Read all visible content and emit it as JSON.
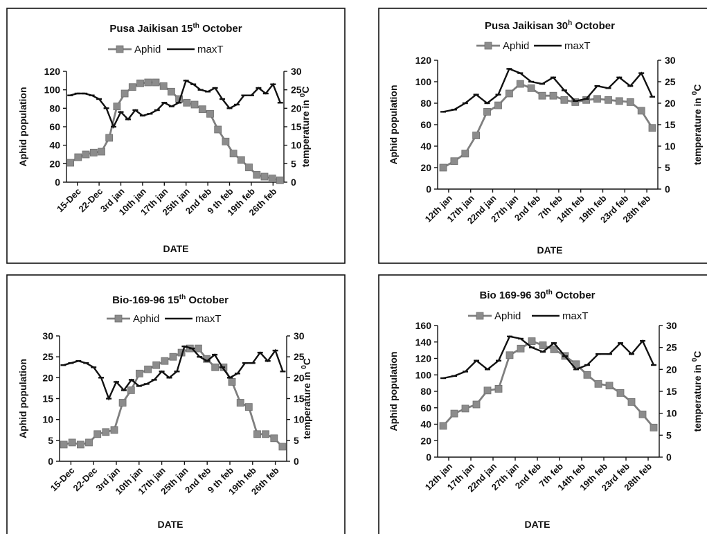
{
  "chart_data": [
    {
      "type": "line",
      "title_main": "Pusa Jaikisan 15",
      "title_sup": "th",
      "title_rest": " October",
      "xlabel": "DATE",
      "ylabel": "Aphid population",
      "y2label_main": "temperature in ",
      "y2label_sup": "0",
      "y2label_rest": "C",
      "ylim": [
        0,
        120
      ],
      "yticks": [
        "0",
        "20",
        "40",
        "60",
        "80",
        "100",
        "120"
      ],
      "y2lim": [
        0,
        30
      ],
      "y2ticks": [
        "0",
        "5",
        "10",
        "15",
        "20",
        "25",
        "30"
      ],
      "xtick_labels": [
        "15-Dec",
        "22-Dec",
        "3rd jan",
        "10th jan",
        "17th jan",
        "25th jan",
        "2nd feb",
        "9 th feb",
        "19th feb",
        "26th feb"
      ],
      "legend": [
        "Aphid",
        "maxT"
      ],
      "series": [
        {
          "name": "Aphid",
          "axis": "left",
          "values": [
            21,
            27,
            30,
            32,
            33,
            48,
            82,
            96,
            103,
            107,
            108,
            108,
            104,
            98,
            90,
            86,
            84,
            79,
            74,
            57,
            44,
            31,
            24,
            16,
            8,
            6,
            4,
            2
          ]
        },
        {
          "name": "maxT",
          "axis": "right",
          "values": [
            23.5,
            24,
            24,
            23.5,
            22.5,
            20,
            15,
            19,
            17,
            19.5,
            18,
            18.5,
            19.5,
            21.5,
            20.5,
            21.5,
            27.5,
            26.5,
            25,
            24.5,
            25.5,
            22.5,
            20,
            21,
            23.5,
            23.5,
            25.5,
            24,
            26.5,
            21.5
          ]
        }
      ]
    },
    {
      "type": "line",
      "title_main": "Pusa Jaikisan 30",
      "title_sup": "h",
      "title_rest": " October",
      "xlabel": "DATE",
      "ylabel": "Aphid population",
      "y2label_main": "temperature in ",
      "y2label_sup": "0",
      "y2label_rest": "C",
      "ylim": [
        0,
        120
      ],
      "yticks": [
        "0",
        "20",
        "40",
        "60",
        "80",
        "100",
        "120"
      ],
      "y2lim": [
        0,
        30
      ],
      "y2ticks": [
        "0",
        "5",
        "10",
        "15",
        "20",
        "25",
        "30"
      ],
      "xtick_labels": [
        "12th jan",
        "17th jan",
        "22nd jan",
        "27th jan",
        "2nd feb",
        "7th feb",
        "14th feb",
        "19th feb",
        "23rd feb",
        "28th feb"
      ],
      "legend": [
        "Aphid",
        "maxT"
      ],
      "series": [
        {
          "name": "Aphid",
          "axis": "left",
          "values": [
            20,
            26,
            33,
            50,
            72,
            78,
            89,
            98,
            94,
            87,
            87,
            83,
            81,
            83,
            84,
            83,
            82,
            81,
            73,
            57
          ]
        },
        {
          "name": "maxT",
          "axis": "right",
          "values": [
            18,
            18.5,
            20,
            22,
            20,
            22,
            28,
            27,
            25,
            24.5,
            26,
            23,
            20.5,
            21,
            24,
            23.5,
            26,
            24,
            27,
            21.5
          ]
        }
      ]
    },
    {
      "type": "line",
      "title_main": "Bio-169-96 15",
      "title_sup": "th",
      "title_rest": " October",
      "xlabel": "DATE",
      "ylabel": "Aphid population",
      "y2label_main": "temperature in ",
      "y2label_sup": "0",
      "y2label_rest": "C",
      "ylim": [
        0,
        30
      ],
      "yticks": [
        "0",
        "5",
        "10",
        "15",
        "20",
        "25",
        "30"
      ],
      "y2lim": [
        0,
        30
      ],
      "y2ticks": [
        "0",
        "5",
        "10",
        "15",
        "20",
        "25",
        "30"
      ],
      "xtick_labels": [
        "15-Dec",
        "22-Dec",
        "3rd jan",
        "10th jan",
        "17th jan",
        "25th jan",
        "2nd feb",
        "9 th feb",
        "19th feb",
        "26th feb"
      ],
      "legend": [
        "Aphid",
        "maxT"
      ],
      "series": [
        {
          "name": "Aphid",
          "axis": "left",
          "values": [
            4,
            4.5,
            4,
            4.5,
            6.5,
            7,
            7.5,
            14,
            17,
            21,
            22,
            23,
            24,
            25,
            26,
            27,
            27,
            24.5,
            22.5,
            22.5,
            19,
            14,
            13,
            6.5,
            6.5,
            5.5,
            3.5
          ]
        },
        {
          "name": "maxT",
          "axis": "right",
          "values": [
            23,
            23.5,
            24,
            23.5,
            22.5,
            20,
            15,
            19,
            17,
            19.5,
            18,
            18.5,
            19.5,
            21.5,
            20,
            21.5,
            27.5,
            27,
            25,
            24,
            25.5,
            22.5,
            20,
            21,
            23.5,
            23.5,
            26,
            24,
            26.5,
            21.5
          ]
        }
      ]
    },
    {
      "type": "line",
      "title_main": "Bio 169-96 30",
      "title_sup": "th",
      "title_rest": " October",
      "xlabel": "DATE",
      "ylabel": "Aphid population",
      "y2label_main": "temperature in ",
      "y2label_sup": "0",
      "y2label_rest": "C",
      "ylim": [
        0,
        160
      ],
      "yticks": [
        "0",
        "20",
        "40",
        "60",
        "80",
        "100",
        "120",
        "140",
        "160"
      ],
      "y2lim": [
        0,
        30
      ],
      "y2ticks": [
        "0",
        "5",
        "10",
        "15",
        "20",
        "25",
        "30"
      ],
      "xtick_labels": [
        "12th jan",
        "17th jan",
        "22nd jan",
        "27th jan",
        "2nd feb",
        "7th feb",
        "14th feb",
        "19th feb",
        "23rd feb",
        "28th feb"
      ],
      "legend": [
        "Aphid",
        "maxT"
      ],
      "series": [
        {
          "name": "Aphid",
          "axis": "left",
          "values": [
            38,
            53,
            59,
            64,
            81,
            83,
            124,
            132,
            141,
            136,
            131,
            123,
            113,
            100,
            89,
            87,
            78,
            67,
            52,
            36
          ]
        },
        {
          "name": "maxT",
          "axis": "right",
          "values": [
            18,
            18.5,
            19.5,
            22,
            20,
            22,
            27.5,
            27,
            25,
            24,
            26,
            23,
            20,
            21,
            23.5,
            23.5,
            26,
            23.5,
            26.5,
            21
          ]
        }
      ]
    }
  ]
}
